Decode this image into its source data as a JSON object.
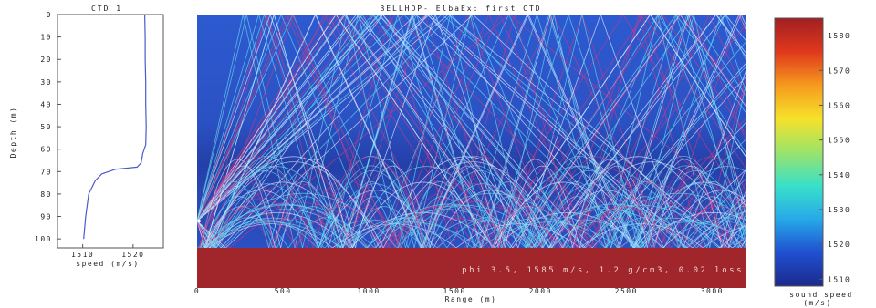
{
  "chart_data": [
    {
      "type": "line",
      "title": "CTD 1",
      "xlabel": "speed (m/s)",
      "ylabel": "Depth (m)",
      "xlim": [
        1505,
        1526
      ],
      "ylim": [
        0,
        104
      ],
      "y_inverted": true,
      "xticks": [
        "1510",
        "1520"
      ],
      "yticks": [
        "0",
        "10",
        "20",
        "30",
        "40",
        "50",
        "60",
        "70",
        "80",
        "90",
        "100"
      ],
      "line_color": "#4a5bc8",
      "points": [
        {
          "speed": 1522.3,
          "depth": 0
        },
        {
          "speed": 1522.4,
          "depth": 10
        },
        {
          "speed": 1522.4,
          "depth": 20
        },
        {
          "speed": 1522.5,
          "depth": 30
        },
        {
          "speed": 1522.5,
          "depth": 40
        },
        {
          "speed": 1522.6,
          "depth": 50
        },
        {
          "speed": 1522.5,
          "depth": 58
        },
        {
          "speed": 1521.9,
          "depth": 62
        },
        {
          "speed": 1521.6,
          "depth": 66
        },
        {
          "speed": 1520.8,
          "depth": 68
        },
        {
          "speed": 1516.5,
          "depth": 69
        },
        {
          "speed": 1513.8,
          "depth": 71
        },
        {
          "speed": 1512.5,
          "depth": 74
        },
        {
          "speed": 1511.2,
          "depth": 80
        },
        {
          "speed": 1510.6,
          "depth": 90
        },
        {
          "speed": 1510.2,
          "depth": 100
        }
      ]
    },
    {
      "type": "heatmap",
      "title": "BELLHOP- ElbaEx: first CTD",
      "xlabel": "Range (m)",
      "xlim": [
        0,
        3200
      ],
      "xticks": [
        "0",
        "500",
        "1000",
        "1500",
        "2000",
        "2500",
        "3000"
      ],
      "source": {
        "range": 0,
        "depth": 92
      },
      "bottom_annotation": "phi 3.5, 1585 m/s, 1.2 g/cm3, 0.02 loss",
      "bottom_color": "#a0262b",
      "background_color": "#2c55c4",
      "ray_colors": [
        "#dce8ff",
        "#66d8f0",
        "#c83a8a"
      ]
    },
    {
      "type": "colorbar",
      "label": "sound speed (m/s)",
      "ticks": [
        "1510",
        "1520",
        "1530",
        "1540",
        "1550",
        "1560",
        "1570",
        "1580"
      ],
      "range": [
        1508,
        1585
      ],
      "colors": [
        "#1c2a8c",
        "#1f4fd0",
        "#27a9e8",
        "#39e0c9",
        "#9be36a",
        "#f6e22a",
        "#f59a1e",
        "#e0381c",
        "#a21f22"
      ]
    }
  ]
}
